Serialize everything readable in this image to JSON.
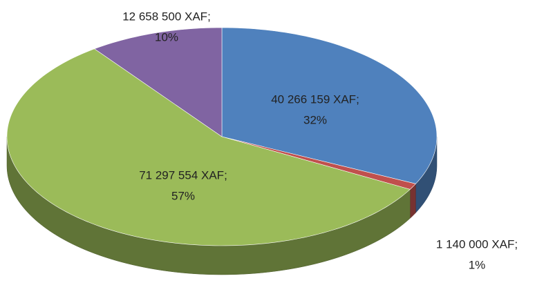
{
  "chart_data": {
    "type": "pie",
    "values": [
      40266159,
      1140000,
      71297554,
      12658500
    ],
    "value_labels": [
      [
        "40 266 159 XAF;",
        "32%"
      ],
      [
        "1 140 000 XAF;",
        "1%"
      ],
      [
        "71 297 554 XAF;",
        "57%"
      ],
      [
        "12 658 500 XAF;",
        "10%"
      ]
    ],
    "colors": [
      "#4f81bd",
      "#c0504d",
      "#9bbb59",
      "#8064a2"
    ]
  }
}
